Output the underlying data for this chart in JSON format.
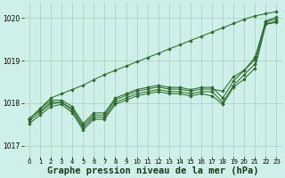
{
  "background_color": "#cff0e8",
  "grid_color": "#aad4c8",
  "line_color": "#2d6b2d",
  "marker_color": "#2d6b2d",
  "xlabel": "Graphe pression niveau de la mer (hPa)",
  "xlabel_fontsize": 7.5,
  "xlim": [
    -0.5,
    23.5
  ],
  "ylim": [
    1016.75,
    1020.35
  ],
  "yticks": [
    1017,
    1018,
    1019,
    1020
  ],
  "xticks": [
    0,
    1,
    2,
    3,
    4,
    5,
    6,
    7,
    8,
    9,
    10,
    11,
    12,
    13,
    14,
    15,
    16,
    17,
    18,
    19,
    20,
    21,
    22,
    23
  ],
  "series": [
    [
      1017.65,
      1017.82,
      1018.02,
      1018.02,
      1017.87,
      1017.47,
      1017.72,
      1017.72,
      1018.08,
      1018.18,
      1018.28,
      1018.33,
      1018.38,
      1018.33,
      1018.33,
      1018.28,
      1018.33,
      1018.33,
      1018.28,
      1018.62,
      1018.77,
      1019.08,
      1019.92,
      1019.97
    ],
    [
      1017.58,
      1017.78,
      1017.98,
      1018.02,
      1017.82,
      1017.42,
      1017.67,
      1017.67,
      1018.02,
      1018.12,
      1018.22,
      1018.27,
      1018.32,
      1018.27,
      1018.27,
      1018.22,
      1018.27,
      1018.27,
      1018.02,
      1018.42,
      1018.67,
      1018.92,
      1019.87,
      1019.92
    ],
    [
      1017.62,
      1017.87,
      1018.07,
      1018.07,
      1017.92,
      1017.52,
      1017.77,
      1017.77,
      1018.12,
      1018.22,
      1018.32,
      1018.37,
      1018.42,
      1018.37,
      1018.37,
      1018.32,
      1018.37,
      1018.37,
      1018.12,
      1018.52,
      1018.77,
      1019.02,
      1019.93,
      1020.02
    ],
    [
      1017.52,
      1017.72,
      1017.92,
      1017.97,
      1017.77,
      1017.37,
      1017.62,
      1017.62,
      1017.97,
      1018.07,
      1018.17,
      1018.22,
      1018.27,
      1018.22,
      1018.22,
      1018.17,
      1018.22,
      1018.17,
      1017.97,
      1018.37,
      1018.57,
      1018.82,
      1019.85,
      1019.9
    ],
    [
      1017.62,
      1017.87,
      1018.12,
      1018.22,
      1018.32,
      1018.42,
      1018.55,
      1018.67,
      1018.77,
      1018.87,
      1018.97,
      1019.07,
      1019.17,
      1019.27,
      1019.37,
      1019.47,
      1019.57,
      1019.67,
      1019.77,
      1019.87,
      1019.97,
      1020.05,
      1020.1,
      1020.15
    ]
  ]
}
